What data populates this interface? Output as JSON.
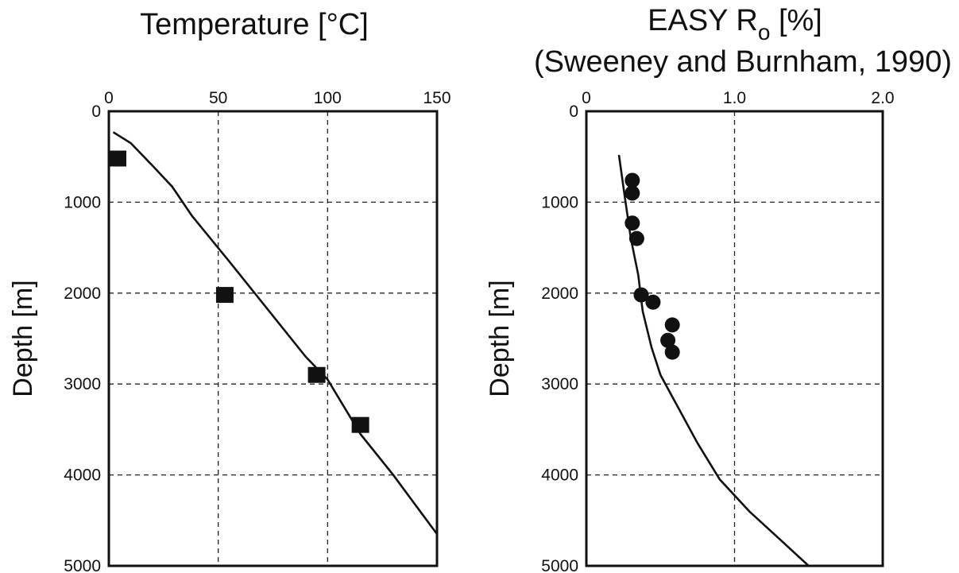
{
  "chart_data": [
    {
      "type": "line",
      "title": "Temperature [°C]",
      "xlabel": "Temperature [°C]",
      "ylabel": "Depth [m]",
      "xlim": [
        0,
        150
      ],
      "ylim": [
        0,
        5000
      ],
      "y_inverted": true,
      "xticks": [
        "0",
        "50",
        "100",
        "150"
      ],
      "yticks": [
        "0",
        "1000",
        "2000",
        "3000",
        "4000",
        "5000"
      ],
      "grid": true,
      "series": [
        {
          "kind": "line",
          "x": [
            2,
            10,
            20,
            29,
            38,
            55,
            75,
            90,
            100,
            105,
            115,
            130,
            150
          ],
          "y": [
            230,
            350,
            600,
            830,
            1150,
            1650,
            2250,
            2700,
            2950,
            3150,
            3550,
            4000,
            4650
          ]
        },
        {
          "kind": "scatter",
          "marker": "square",
          "x": [
            4,
            53,
            95,
            115
          ],
          "y": [
            520,
            2020,
            2900,
            3450
          ]
        }
      ]
    },
    {
      "type": "line",
      "title_main": "EASY R",
      "title_sub": "o",
      "title_tail": " [%]",
      "subtitle": "(Sweeney and Burnham, 1990)",
      "ylabel": "Depth [m]",
      "xlim": [
        0,
        2
      ],
      "ylim": [
        0,
        5000
      ],
      "y_inverted": true,
      "xticks": [
        "0",
        "1.0",
        "2.0"
      ],
      "yticks": [
        "0",
        "1000",
        "2000",
        "3000",
        "4000",
        "5000"
      ],
      "grid": true,
      "series": [
        {
          "kind": "line",
          "x": [
            0.22,
            0.26,
            0.3,
            0.35,
            0.38,
            0.44,
            0.5,
            0.6,
            0.75,
            0.9,
            1.1,
            1.3,
            1.5
          ],
          "y": [
            480,
            950,
            1400,
            1800,
            2200,
            2600,
            2900,
            3200,
            3650,
            4050,
            4400,
            4700,
            5000
          ]
        },
        {
          "kind": "scatter",
          "marker": "circle",
          "x": [
            0.31,
            0.31,
            0.31,
            0.34,
            0.37,
            0.45,
            0.58,
            0.55,
            0.58
          ],
          "y": [
            760,
            900,
            1230,
            1400,
            2020,
            2100,
            2350,
            2520,
            2650
          ]
        }
      ]
    }
  ]
}
